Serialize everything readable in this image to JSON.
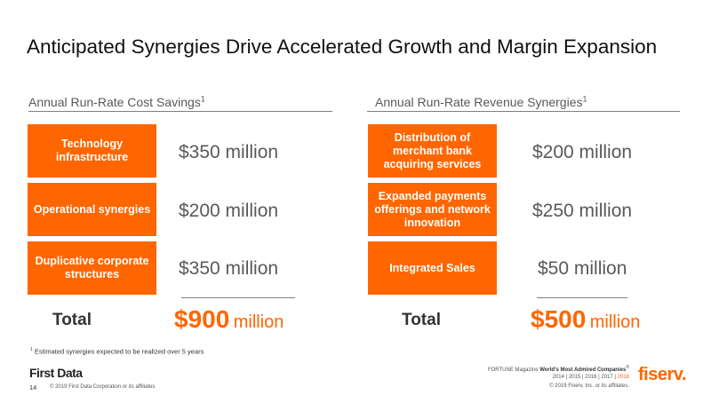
{
  "title": "Anticipated Synergies Drive Accelerated Growth and Margin Expansion",
  "left": {
    "heading": "Annual Run-Rate Cost Savings",
    "heading_sup": "1",
    "rows": [
      {
        "label": "Technology infrastructure",
        "value": "$350 million"
      },
      {
        "label": "Operational synergies",
        "value": "$200 million"
      },
      {
        "label": "Duplicative corporate structures",
        "value": "$350 million"
      }
    ],
    "total_label": "Total",
    "total_num": "$900",
    "total_unit": "million"
  },
  "right": {
    "heading": "Annual Run-Rate Revenue Synergies",
    "heading_sup": "1",
    "rows": [
      {
        "label": "Distribution of merchant bank acquiring services",
        "value": "$200 million"
      },
      {
        "label": "Expanded payments offerings and network innovation",
        "value": "$250 million"
      },
      {
        "label": "Integrated Sales",
        "value": "$50 million"
      }
    ],
    "total_label": "Total",
    "total_num": "$500",
    "total_unit": "million"
  },
  "footnote": {
    "sup": "1",
    "text": "Estimated synergies expected to be realized over 5 years"
  },
  "footer": {
    "first_data_logo": "First Data",
    "page_number": "14",
    "copyright_left": "© 2019 First Data Corporation or its affiliates",
    "fortune_prefix": "FORTUNE Magazine",
    "fortune_bold": "World's Most Admired Companies",
    "fortune_mark": "®",
    "years": [
      "2014",
      "2015",
      "2016",
      "2017",
      "2018"
    ],
    "year_sep": "|",
    "copyright_right": "© 2019 Fiserv, Inc. or its affiliates.",
    "fiserv_logo": "fiserv."
  },
  "colors": {
    "accent": "#ff6600",
    "text_gray": "#595959",
    "rule": "#7f7f7f"
  }
}
